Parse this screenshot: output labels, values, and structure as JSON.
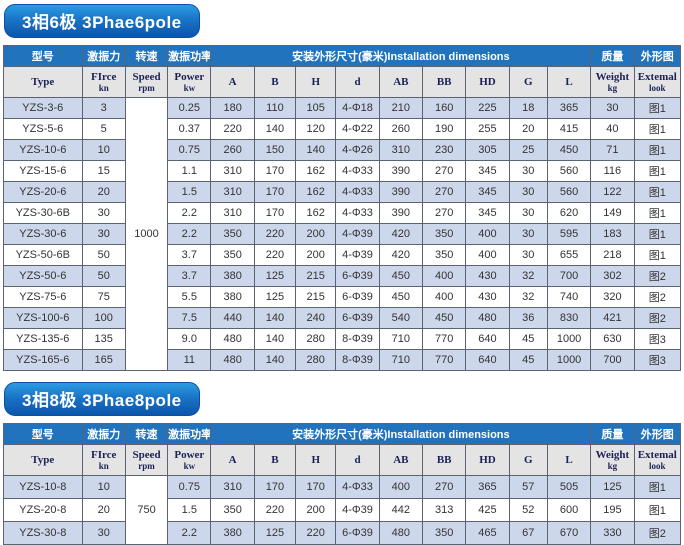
{
  "colors": {
    "header_blue": "#2173bd",
    "stripe_blue": "#cdd7eb",
    "subheader_gray": "#e4e4e4",
    "title_gradient_top": "#2c9ce4",
    "title_gradient_bottom": "#0b55ad"
  },
  "table_header": {
    "model_cn": "型号",
    "model_en": "Type",
    "force_cn": "激振力",
    "force_en": "FIrce",
    "force_unit": "kn",
    "speed_cn": "转速",
    "speed_en": "Speed",
    "speed_unit": "rpm",
    "power_cn": "激振功率",
    "power_en": "Power",
    "power_unit": "kw",
    "install_cn": "安装外形尺寸(豪米)Installation dimensions",
    "dims": [
      "A",
      "B",
      "H",
      "d",
      "AB",
      "BB",
      "HD",
      "G",
      "L"
    ],
    "weight_cn": "质量",
    "weight_en": "Weight",
    "weight_unit": "kg",
    "look_cn": "外形图",
    "look_en": "Extemal",
    "look_unit": "look"
  },
  "sections": [
    {
      "title": "3相6极 3Phae6pole",
      "speed": "1000",
      "rows": [
        {
          "type": "YZS-3-6",
          "force": "3",
          "power": "0.25",
          "a": "180",
          "b": "110",
          "h": "105",
          "d": "4-Φ18",
          "ab": "210",
          "bb": "160",
          "hd": "225",
          "g": "18",
          "l": "365",
          "weight": "30",
          "look": "图1"
        },
        {
          "type": "YZS-5-6",
          "force": "5",
          "power": "0.37",
          "a": "220",
          "b": "140",
          "h": "120",
          "d": "4-Φ22",
          "ab": "260",
          "bb": "190",
          "hd": "255",
          "g": "20",
          "l": "415",
          "weight": "40",
          "look": "图1"
        },
        {
          "type": "YZS-10-6",
          "force": "10",
          "power": "0.75",
          "a": "260",
          "b": "150",
          "h": "140",
          "d": "4-Φ26",
          "ab": "310",
          "bb": "230",
          "hd": "305",
          "g": "25",
          "l": "450",
          "weight": "71",
          "look": "图1"
        },
        {
          "type": "YZS-15-6",
          "force": "15",
          "power": "1.1",
          "a": "310",
          "b": "170",
          "h": "162",
          "d": "4-Φ33",
          "ab": "390",
          "bb": "270",
          "hd": "345",
          "g": "30",
          "l": "560",
          "weight": "116",
          "look": "图1"
        },
        {
          "type": "YZS-20-6",
          "force": "20",
          "power": "1.5",
          "a": "310",
          "b": "170",
          "h": "162",
          "d": "4-Φ33",
          "ab": "390",
          "bb": "270",
          "hd": "345",
          "g": "30",
          "l": "560",
          "weight": "122",
          "look": "图1"
        },
        {
          "type": "YZS-30-6B",
          "force": "30",
          "power": "2.2",
          "a": "310",
          "b": "170",
          "h": "162",
          "d": "4-Φ33",
          "ab": "390",
          "bb": "270",
          "hd": "345",
          "g": "30",
          "l": "620",
          "weight": "149",
          "look": "图1"
        },
        {
          "type": "YZS-30-6",
          "force": "30",
          "power": "2.2",
          "a": "350",
          "b": "220",
          "h": "200",
          "d": "4-Φ39",
          "ab": "420",
          "bb": "350",
          "hd": "400",
          "g": "30",
          "l": "595",
          "weight": "183",
          "look": "图1"
        },
        {
          "type": "YZS-50-6B",
          "force": "50",
          "power": "3.7",
          "a": "350",
          "b": "220",
          "h": "200",
          "d": "4-Φ39",
          "ab": "420",
          "bb": "350",
          "hd": "400",
          "g": "30",
          "l": "655",
          "weight": "218",
          "look": "图1"
        },
        {
          "type": "YZS-50-6",
          "force": "50",
          "power": "3.7",
          "a": "380",
          "b": "125",
          "h": "215",
          "d": "6-Φ39",
          "ab": "450",
          "bb": "400",
          "hd": "430",
          "g": "32",
          "l": "700",
          "weight": "302",
          "look": "图2"
        },
        {
          "type": "YZS-75-6",
          "force": "75",
          "power": "5.5",
          "a": "380",
          "b": "125",
          "h": "215",
          "d": "6-Φ39",
          "ab": "450",
          "bb": "400",
          "hd": "430",
          "g": "32",
          "l": "740",
          "weight": "320",
          "look": "图2"
        },
        {
          "type": "YZS-100-6",
          "force": "100",
          "power": "7.5",
          "a": "440",
          "b": "140",
          "h": "240",
          "d": "6-Φ39",
          "ab": "540",
          "bb": "450",
          "hd": "480",
          "g": "36",
          "l": "830",
          "weight": "421",
          "look": "图2"
        },
        {
          "type": "YZS-135-6",
          "force": "135",
          "power": "9.0",
          "a": "480",
          "b": "140",
          "h": "280",
          "d": "8-Φ39",
          "ab": "710",
          "bb": "770",
          "hd": "640",
          "g": "45",
          "l": "1000",
          "weight": "630",
          "look": "图3"
        },
        {
          "type": "YZS-165-6",
          "force": "165",
          "power": "11",
          "a": "480",
          "b": "140",
          "h": "280",
          "d": "8-Φ39",
          "ab": "710",
          "bb": "770",
          "hd": "640",
          "g": "45",
          "l": "1000",
          "weight": "700",
          "look": "图3"
        }
      ]
    },
    {
      "title": "3相8极 3Phae8pole",
      "speed": "750",
      "rows": [
        {
          "type": "YZS-10-8",
          "force": "10",
          "power": "0.75",
          "a": "310",
          "b": "170",
          "h": "170",
          "d": "4-Φ33",
          "ab": "400",
          "bb": "270",
          "hd": "365",
          "g": "57",
          "l": "505",
          "weight": "125",
          "look": "图1"
        },
        {
          "type": "YZS-20-8",
          "force": "20",
          "power": "1.5",
          "a": "350",
          "b": "220",
          "h": "200",
          "d": "4-Φ39",
          "ab": "442",
          "bb": "313",
          "hd": "425",
          "g": "52",
          "l": "600",
          "weight": "195",
          "look": "图1"
        },
        {
          "type": "YZS-30-8",
          "force": "30",
          "power": "2.2",
          "a": "380",
          "b": "125",
          "h": "220",
          "d": "6-Φ39",
          "ab": "480",
          "bb": "350",
          "hd": "465",
          "g": "67",
          "l": "670",
          "weight": "330",
          "look": "图2"
        }
      ]
    }
  ]
}
